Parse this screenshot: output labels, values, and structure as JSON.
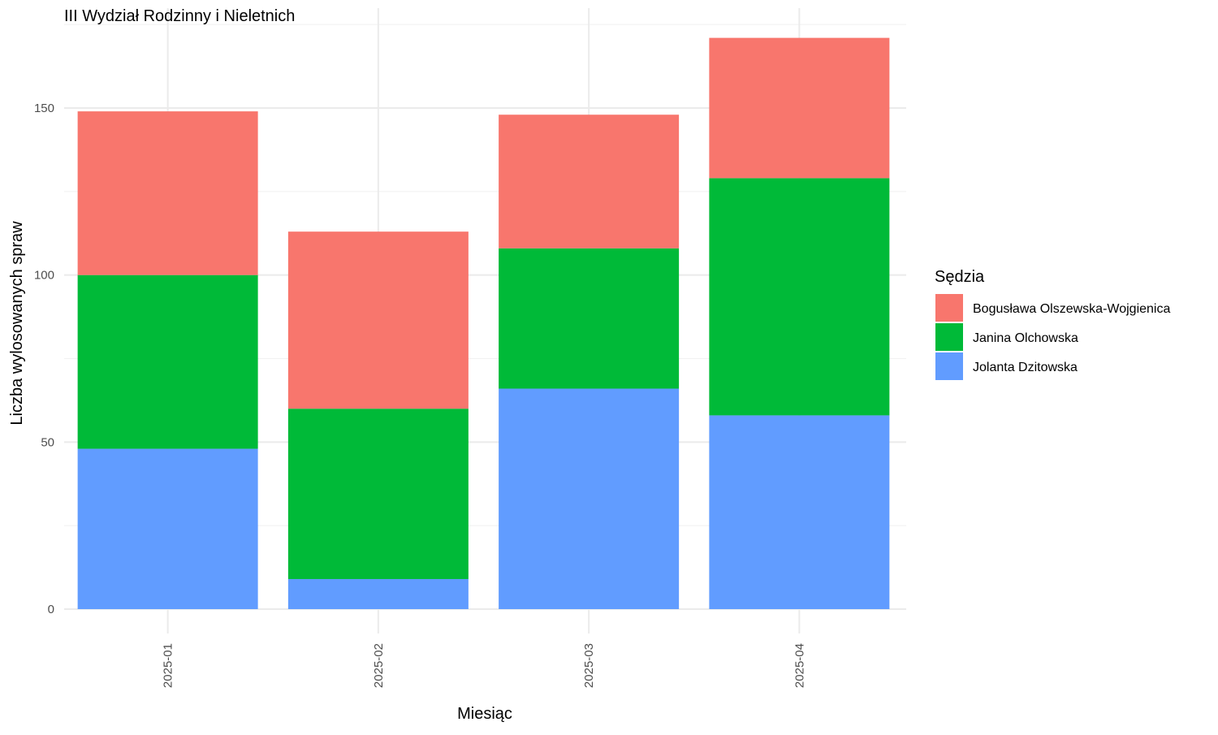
{
  "chart_data": {
    "type": "bar",
    "stacked": true,
    "title": "III Wydział Rodzinny i Nieletnich",
    "xlabel": "Miesiąc",
    "ylabel": "Liczba wylosowanych spraw",
    "categories": [
      "2025-01",
      "2025-02",
      "2025-03",
      "2025-04"
    ],
    "ylim": [
      0,
      175
    ],
    "yticks": [
      0,
      50,
      100,
      150
    ],
    "grid": true,
    "legend": {
      "title": "Sędzia",
      "position": "right"
    },
    "series": [
      {
        "name": "Jolanta Dzitowska",
        "color": "#619CFF",
        "values": [
          48,
          9,
          66,
          58
        ]
      },
      {
        "name": "Janina Olchowska",
        "color": "#00BA38",
        "values": [
          52,
          51,
          42,
          71
        ]
      },
      {
        "name": "Bogusława Olszewska-Wojgienica",
        "color": "#F8766D",
        "values": [
          49,
          53,
          40,
          42
        ]
      }
    ],
    "legend_order": [
      "Bogusława Olszewska-Wojgienica",
      "Janina Olchowska",
      "Jolanta Dzitowska"
    ]
  }
}
